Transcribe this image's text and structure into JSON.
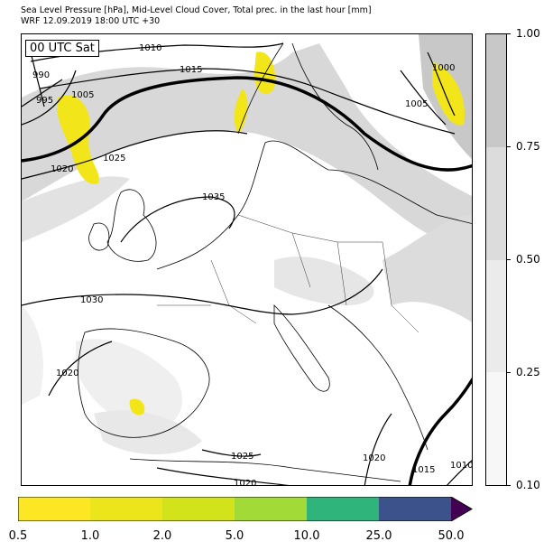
{
  "header": {
    "line1": "Sea Level Pressure [hPa], Mid-Level Cloud Cover, Total prec. in the last hour [mm]",
    "line2": "WRF 12.09.2019 18:00 UTC +30"
  },
  "map": {
    "time_label": "00 UTC Sat",
    "isobar_labels": [
      "1010",
      "1015",
      "990",
      "995",
      "1005",
      "1000",
      "1005",
      "1020",
      "1025",
      "1035",
      "1030",
      "1020",
      "1025",
      "1020",
      "1020",
      "1015",
      "1010"
    ]
  },
  "cloud_colorbar": {
    "ticks": [
      "1.00",
      "0.75",
      "0.50",
      "0.25",
      "0.10"
    ],
    "colors": [
      "#c8c8c8",
      "#dcdcdc",
      "#ebebeb",
      "#f7f7f7"
    ]
  },
  "precip_colorbar": {
    "ticks": [
      "0.5",
      "1.0",
      "2.0",
      "5.0",
      "10.0",
      "25.0",
      "50.0"
    ],
    "colors": [
      "#fde725",
      "#ede51b",
      "#d2e21b",
      "#a2da37",
      "#2fb47c",
      "#3b528b",
      "#440154"
    ]
  }
}
